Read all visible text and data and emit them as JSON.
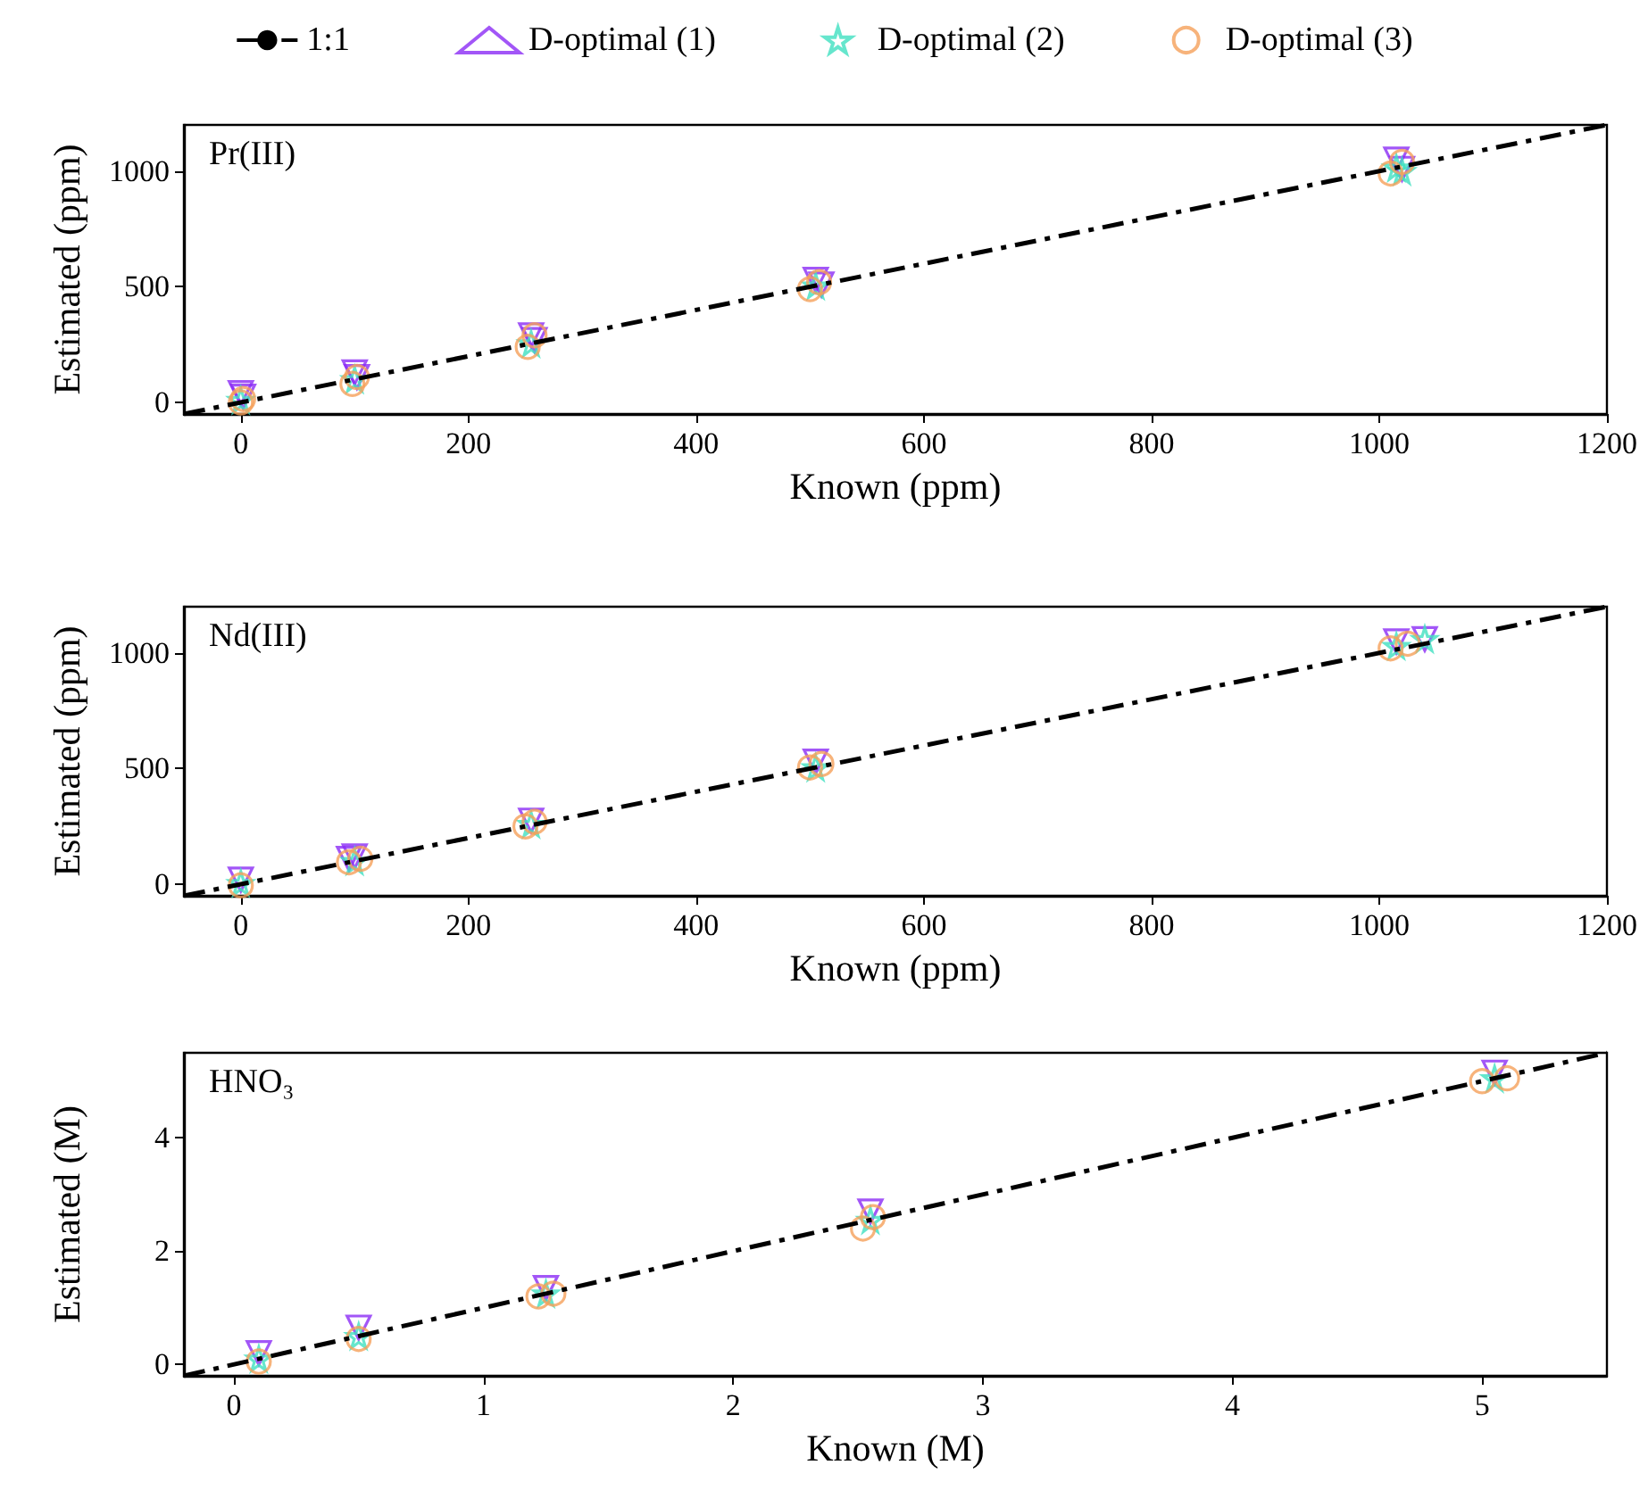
{
  "chart_data": [
    {
      "type": "scatter",
      "title": "Pr(III)",
      "xlabel": "Known (ppm)",
      "ylabel": "Estimated (ppm)",
      "xlim": [
        -50,
        1200
      ],
      "ylim": [
        -50,
        1200
      ],
      "xticks": [
        0,
        200,
        400,
        600,
        800,
        1000,
        1200
      ],
      "yticks": [
        0,
        500,
        1000
      ],
      "legend": "top",
      "grid": false,
      "series": [
        {
          "name": "1:1",
          "type": "line",
          "color": "#000000",
          "line_style": "dashdot",
          "marker": "none",
          "x": [
            -50,
            1200
          ],
          "values": [
            -50,
            1200
          ]
        },
        {
          "name": "D-optimal (1)",
          "color": "#8b2cf5",
          "marker": "triangle",
          "x": [
            0,
            2,
            100,
            102,
            255,
            258,
            505,
            510,
            1015,
            1020
          ],
          "values": [
            40,
            25,
            130,
            110,
            290,
            270,
            530,
            510,
            1050,
            1010
          ]
        },
        {
          "name": "D-optimal (2)",
          "color": "#40e0c0",
          "marker": "star",
          "x": [
            0,
            100,
            255,
            505,
            1015,
            1020
          ],
          "values": [
            10,
            100,
            255,
            505,
            1015,
            1000
          ]
        },
        {
          "name": "D-optimal (3)",
          "color": "#f5a05a",
          "marker": "circle",
          "x": [
            0,
            2,
            98,
            102,
            252,
            258,
            500,
            508,
            1010,
            1020
          ],
          "values": [
            0,
            15,
            80,
            110,
            240,
            290,
            490,
            520,
            990,
            1040
          ]
        }
      ]
    },
    {
      "type": "scatter",
      "title": "Nd(III)",
      "xlabel": "Known (ppm)",
      "ylabel": "Estimated (ppm)",
      "xlim": [
        -50,
        1200
      ],
      "ylim": [
        -50,
        1200
      ],
      "xticks": [
        0,
        200,
        400,
        600,
        800,
        1000,
        1200
      ],
      "yticks": [
        0,
        500,
        1000
      ],
      "grid": false,
      "series": [
        {
          "type": "line",
          "color": "#000000",
          "line_style": "dashdot",
          "marker": "none",
          "x": [
            -50,
            1200
          ],
          "values": [
            -50,
            1200
          ]
        },
        {
          "color": "#8b2cf5",
          "marker": "triangle",
          "x": [
            0,
            95,
            100,
            255,
            505,
            1015,
            1040
          ],
          "values": [
            20,
            110,
            120,
            275,
            530,
            1050,
            1060
          ]
        },
        {
          "color": "#40e0c0",
          "marker": "star",
          "x": [
            0,
            100,
            255,
            505,
            1015,
            1040
          ],
          "values": [
            5,
            100,
            260,
            505,
            1030,
            1060
          ]
        },
        {
          "color": "#f5a05a",
          "marker": "circle",
          "x": [
            0,
            95,
            105,
            250,
            258,
            500,
            510,
            1010,
            1025
          ],
          "values": [
            -5,
            95,
            110,
            250,
            270,
            505,
            520,
            1020,
            1040
          ]
        }
      ]
    },
    {
      "type": "scatter",
      "title": "HNO₃",
      "xlabel": "Known (M)",
      "ylabel": "Estimated (M)",
      "xlim": [
        -0.2,
        5.5
      ],
      "ylim": [
        -0.2,
        5.5
      ],
      "xticks": [
        0,
        1,
        2,
        3,
        4,
        5
      ],
      "yticks": [
        0,
        2,
        4
      ],
      "grid": false,
      "series": [
        {
          "type": "line",
          "color": "#000000",
          "line_style": "dashdot",
          "marker": "none",
          "x": [
            -0.2,
            5.5
          ],
          "values": [
            -0.2,
            5.5
          ]
        },
        {
          "color": "#8b2cf5",
          "marker": "triangle",
          "x": [
            0.1,
            0.5,
            1.25,
            2.55,
            5.05
          ],
          "values": [
            0.2,
            0.65,
            1.35,
            2.7,
            5.15
          ]
        },
        {
          "color": "#40e0c0",
          "marker": "star",
          "x": [
            0.1,
            0.5,
            1.25,
            2.55,
            5.05
          ],
          "values": [
            0.1,
            0.5,
            1.25,
            2.55,
            5.05
          ]
        },
        {
          "color": "#f5a05a",
          "marker": "circle",
          "x": [
            0.1,
            0.5,
            1.22,
            1.28,
            2.52,
            2.56,
            5.0,
            5.1
          ],
          "values": [
            0.05,
            0.45,
            1.2,
            1.25,
            2.4,
            2.6,
            5.0,
            5.05
          ]
        }
      ]
    }
  ]
}
